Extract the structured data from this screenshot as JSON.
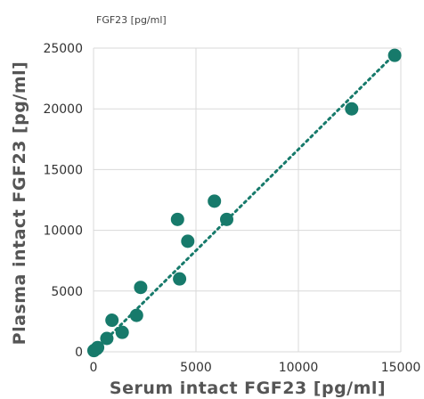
{
  "chart_data": {
    "type": "scatter",
    "title": "FGF23 [pg/ml]",
    "xlabel": "Serum intact FGF23 [pg/ml]",
    "ylabel": "Plasma intact FGF23 [pg/ml]",
    "xlim": [
      0,
      15000
    ],
    "ylim": [
      0,
      25000
    ],
    "xticks": [
      0,
      5000,
      10000,
      15000
    ],
    "yticks": [
      0,
      5000,
      10000,
      15000,
      20000,
      25000
    ],
    "grid": true,
    "legend": "none",
    "trendline": {
      "style": "dotted",
      "x": [
        0,
        14700
      ],
      "y": [
        0,
        24500
      ]
    },
    "marker_color": "#177a6b",
    "series": [
      {
        "points": [
          [
            20,
            100
          ],
          [
            150,
            250
          ],
          [
            200,
            350
          ],
          [
            650,
            1100
          ],
          [
            900,
            2600
          ],
          [
            1400,
            1600
          ],
          [
            2100,
            3000
          ],
          [
            2300,
            5300
          ],
          [
            4200,
            6000
          ],
          [
            4100,
            10900
          ],
          [
            4600,
            9100
          ],
          [
            5900,
            12400
          ],
          [
            6500,
            10900
          ],
          [
            12600,
            20000
          ],
          [
            14700,
            24400
          ]
        ]
      }
    ]
  }
}
